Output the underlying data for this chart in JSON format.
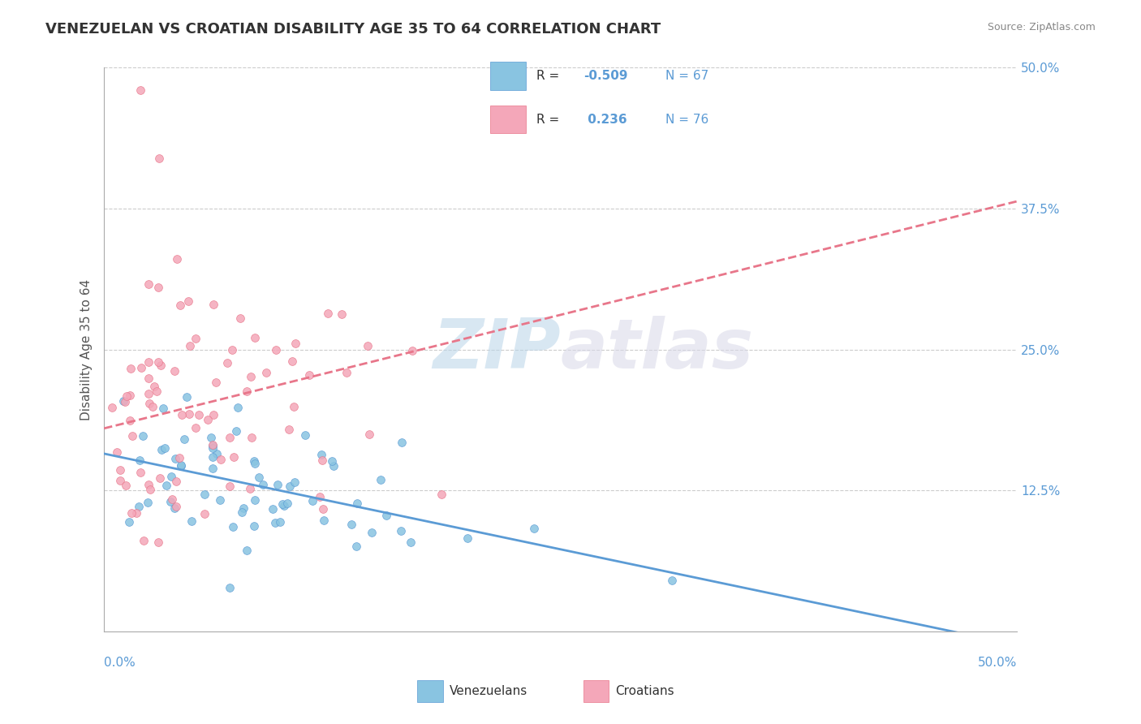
{
  "title": "VENEZUELAN VS CROATIAN DISABILITY AGE 35 TO 64 CORRELATION CHART",
  "source": "Source: ZipAtlas.com",
  "ylabel": "Disability Age 35 to 64",
  "legend_label1": "Venezuelans",
  "legend_label2": "Croatians",
  "R1": -0.509,
  "N1": 67,
  "R2": 0.236,
  "N2": 76,
  "color_blue": "#89C4E1",
  "color_pink": "#F4A7B9",
  "color_blue_dark": "#5B9BD5",
  "color_pink_dark": "#E8768A",
  "color_line_blue": "#5B9BD5",
  "color_line_pink": "#E8768A",
  "watermark_zip": "ZIP",
  "watermark_atlas": "atlas",
  "xmin": 0.0,
  "xmax": 0.5,
  "ymin": 0.0,
  "ymax": 0.5,
  "yticks_right": [
    0.125,
    0.25,
    0.375,
    0.5
  ],
  "ytick_labels_right": [
    "12.5%",
    "25.0%",
    "37.5%",
    "50.0%"
  ],
  "background_color": "#FFFFFF",
  "grid_color": "#CCCCCC"
}
